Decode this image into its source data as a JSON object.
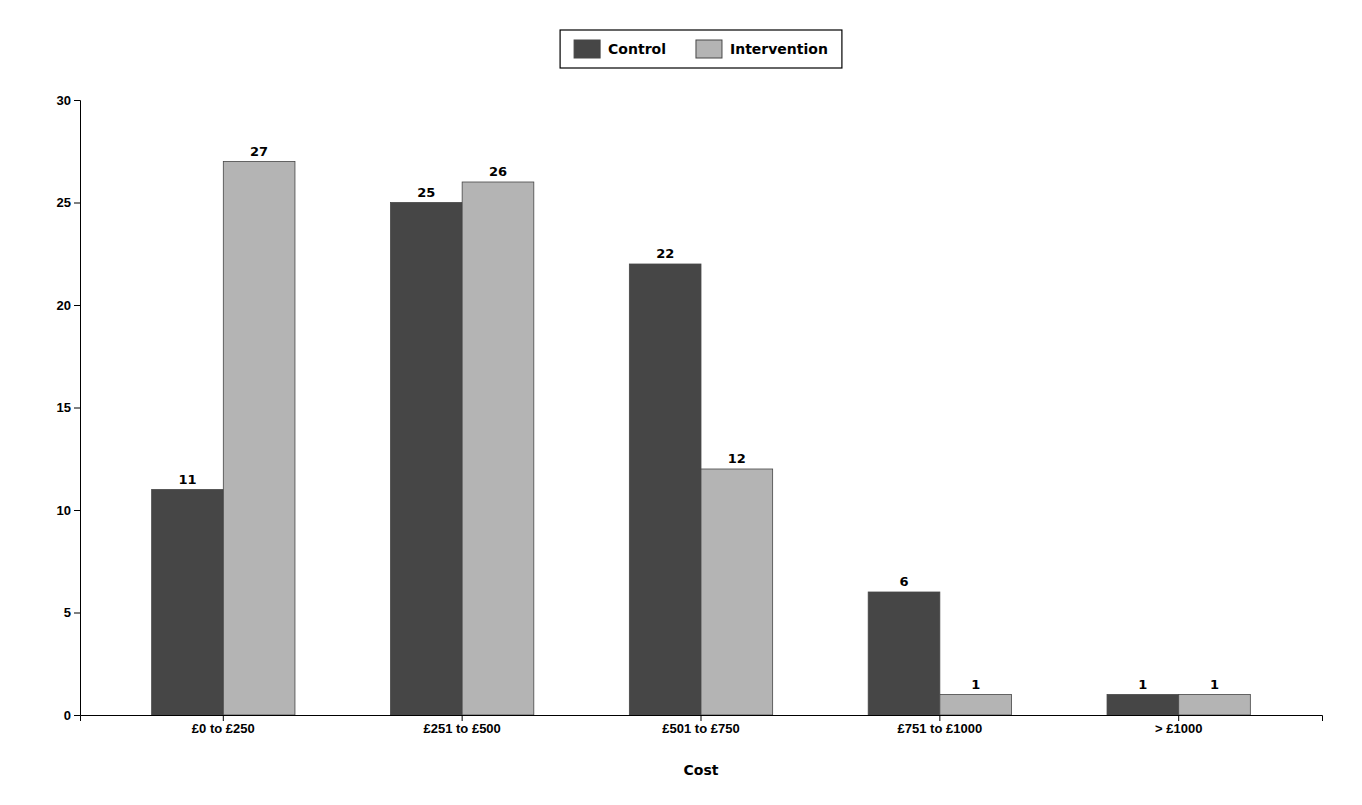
{
  "chart_data": {
    "type": "bar",
    "xlabel": "Cost",
    "categories": [
      "£0 to £250",
      "£251 to £500",
      "£501 to £750",
      "£751 to £1000",
      "> £1000"
    ],
    "series": [
      {
        "name": "Control",
        "color": "#464646",
        "values": [
          11,
          25,
          22,
          6,
          1
        ]
      },
      {
        "name": "Intervention",
        "color": "#b4b4b4",
        "values": [
          27,
          26,
          12,
          1,
          1
        ]
      }
    ],
    "ylim": [
      0,
      30
    ],
    "yticks": [
      0,
      5,
      10,
      15,
      20,
      25,
      30
    ],
    "data_labels": true,
    "legend": "top",
    "grid": false
  }
}
